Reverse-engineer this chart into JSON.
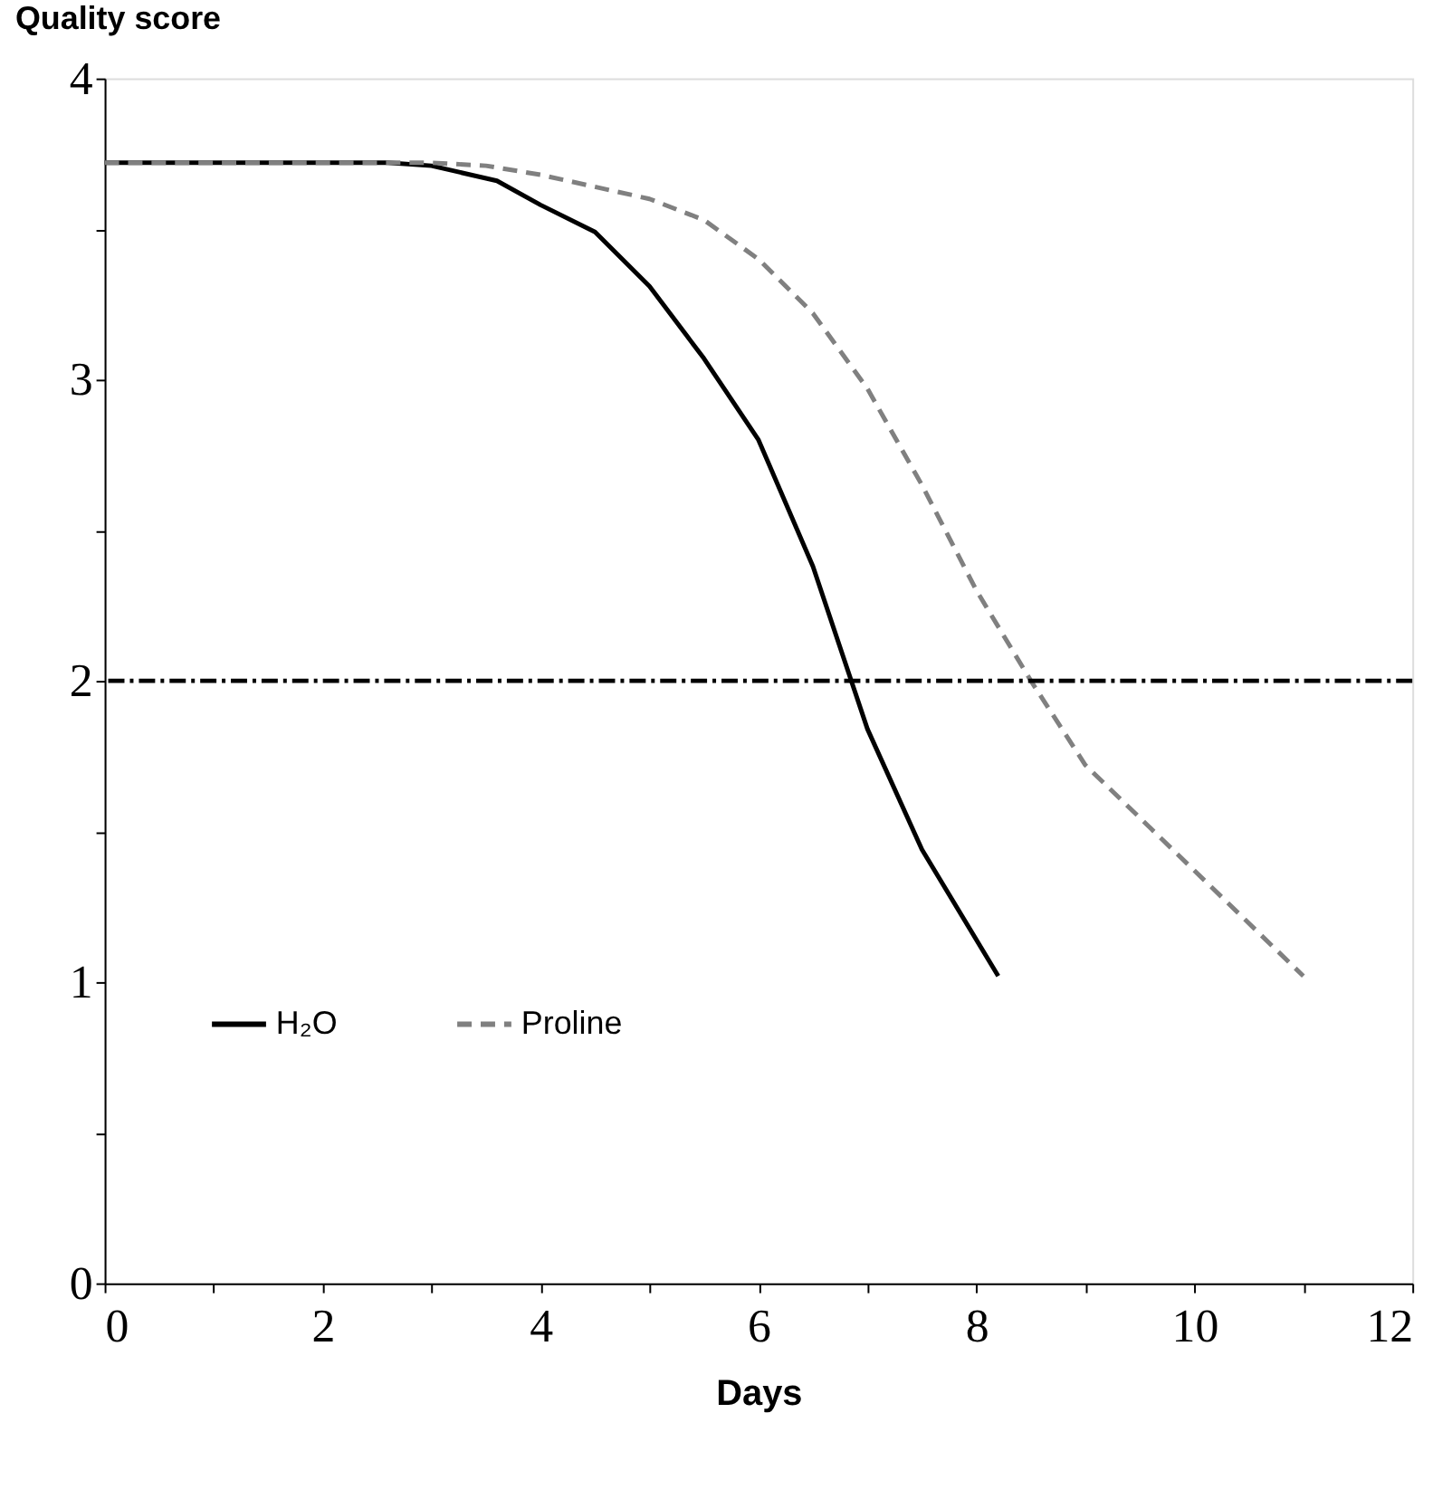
{
  "chart_data": {
    "type": "line",
    "xlabel": "Days",
    "ylabel": "Quality score",
    "series": [
      {
        "name": "H₂O",
        "color": "#000000",
        "line_style": "solid",
        "x": [
          0,
          1,
          2,
          2.6,
          3,
          3.6,
          4,
          4.5,
          5,
          5.5,
          6,
          6.5,
          7,
          7.5,
          8.2
        ],
        "values": [
          3.72,
          3.72,
          3.72,
          3.72,
          3.71,
          3.66,
          3.58,
          3.49,
          3.31,
          3.07,
          2.8,
          2.38,
          1.84,
          1.44,
          1.02
        ]
      },
      {
        "name": "Proline",
        "color": "#808080",
        "line_style": "dashed",
        "x": [
          0,
          1,
          2,
          3,
          3.5,
          4,
          5,
          5.5,
          6,
          6.5,
          7,
          7.5,
          8,
          8.5,
          9,
          10,
          11
        ],
        "values": [
          3.72,
          3.72,
          3.72,
          3.72,
          3.71,
          3.68,
          3.6,
          3.53,
          3.4,
          3.22,
          2.97,
          2.65,
          2.3,
          2.0,
          1.72,
          1.37,
          1.02
        ]
      }
    ],
    "xlim": [
      0,
      12
    ],
    "ylim": [
      0,
      4
    ],
    "xticks": [
      0,
      {
        "value": 1,
        "label": null
      },
      2,
      {
        "value": 3,
        "label": null
      },
      4,
      {
        "value": 5,
        "label": null
      },
      6,
      {
        "value": 7,
        "label": null
      },
      8,
      {
        "value": 9,
        "label": null
      },
      10,
      {
        "value": 11,
        "label": null
      },
      12
    ],
    "yticks": [
      0,
      {
        "value": 0.5,
        "label": null
      },
      1,
      {
        "value": 1.5,
        "label": null
      },
      2,
      {
        "value": 2.5,
        "label": null
      },
      3,
      {
        "value": 3.5,
        "label": null
      },
      4
    ],
    "ref_lines": [
      {
        "axis": "y",
        "value": 2,
        "color": "#000000",
        "line_style": "dotted"
      }
    ],
    "legend": "bottom left",
    "grid": false
  }
}
